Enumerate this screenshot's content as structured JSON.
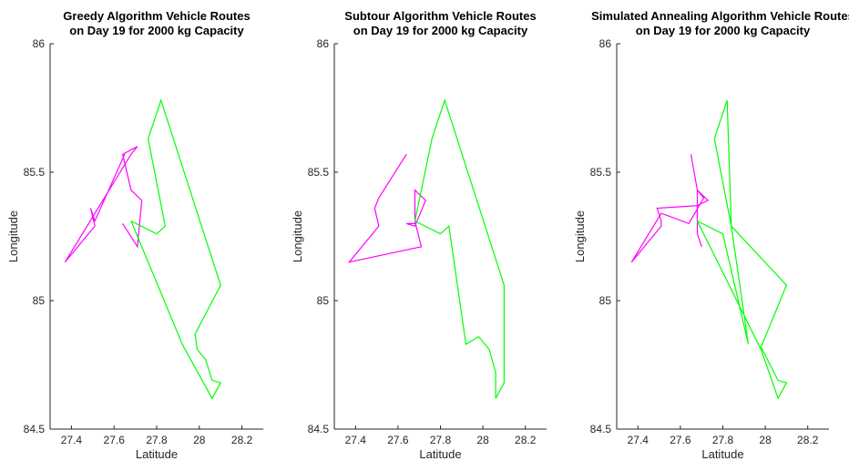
{
  "colors": {
    "route_1": "#ff00ff",
    "route_2": "#00ff00",
    "axis": "#262626"
  },
  "chart_data": [
    {
      "type": "line",
      "title": [
        "Greedy Algorithm Vehicle Routes",
        "on Day 19 for 2000 kg Capacity"
      ],
      "xlabel": "Latitude",
      "ylabel": "Longitude",
      "xlim": [
        27.3,
        28.3
      ],
      "ylim": [
        84.5,
        86
      ],
      "xticks": [
        27.4,
        27.6,
        27.8,
        28,
        28.2
      ],
      "xtick_labels": [
        "27.4",
        "27.6",
        "27.8",
        "28",
        "28.2"
      ],
      "yticks": [
        84.5,
        85,
        85.5,
        86
      ],
      "ytick_labels": [
        "84.5",
        "85",
        "85.5",
        "86"
      ],
      "grid": false,
      "series": [
        {
          "color": "#ff00ff",
          "x": [
            27.64,
            27.71,
            27.73,
            27.68,
            27.64,
            27.71,
            27.68,
            27.37,
            27.51,
            27.51,
            27.49,
            27.51,
            27.65
          ],
          "y": [
            85.3,
            85.21,
            85.39,
            85.43,
            85.57,
            85.6,
            85.57,
            85.15,
            85.29,
            85.29,
            85.36,
            85.31,
            85.57
          ]
        },
        {
          "color": "#00ff00",
          "x": [
            27.68,
            27.8,
            27.84,
            27.76,
            27.82,
            28.1,
            27.98,
            27.99,
            28.03,
            28.06,
            28.1,
            28.06,
            27.92,
            27.68
          ],
          "y": [
            85.31,
            85.26,
            85.29,
            85.63,
            85.78,
            85.06,
            84.87,
            84.81,
            84.77,
            84.69,
            84.68,
            84.62,
            84.83,
            85.31
          ]
        }
      ]
    },
    {
      "type": "line",
      "title": [
        "Subtour Algorithm Vehicle Routes",
        "on Day 19 for 2000 kg Capacity"
      ],
      "xlabel": "Latitude",
      "ylabel": "Longitude",
      "xlim": [
        27.3,
        28.3
      ],
      "ylim": [
        84.5,
        86
      ],
      "xticks": [
        27.4,
        27.6,
        27.8,
        28,
        28.2
      ],
      "xtick_labels": [
        "27.4",
        "27.6",
        "27.8",
        "28",
        "28.2"
      ],
      "yticks": [
        84.5,
        85,
        85.5,
        86
      ],
      "ytick_labels": [
        "84.5",
        "85",
        "85.5",
        "86"
      ],
      "grid": false,
      "series": [
        {
          "color": "#ff00ff",
          "x": [
            27.68,
            27.64,
            27.68,
            27.73,
            27.68,
            27.68,
            27.71,
            27.37,
            27.51,
            27.49,
            27.51,
            27.64
          ],
          "y": [
            85.3,
            85.3,
            85.29,
            85.39,
            85.43,
            85.31,
            85.21,
            85.15,
            85.29,
            85.36,
            85.4,
            85.57
          ]
        },
        {
          "color": "#00ff00",
          "x": [
            27.68,
            27.8,
            27.84,
            27.92,
            27.98,
            28.03,
            28.06,
            28.06,
            28.1,
            28.1,
            27.82,
            27.76,
            27.68
          ],
          "y": [
            85.31,
            85.26,
            85.29,
            84.83,
            84.86,
            84.81,
            84.72,
            84.62,
            84.68,
            85.06,
            85.78,
            85.63,
            85.31
          ]
        }
      ]
    },
    {
      "type": "line",
      "title": [
        "Simulated Annealing Algorithm Vehicle Routes",
        "on Day 19 for 2000 kg Capacity"
      ],
      "xlabel": "Latitude",
      "ylabel": "Longitude",
      "xlim": [
        27.3,
        28.3
      ],
      "ylim": [
        84.5,
        86
      ],
      "xticks": [
        27.4,
        27.6,
        27.8,
        28,
        28.2
      ],
      "xtick_labels": [
        "27.4",
        "27.6",
        "27.8",
        "28",
        "28.2"
      ],
      "yticks": [
        84.5,
        85,
        85.5,
        86
      ],
      "ytick_labels": [
        "84.5",
        "85",
        "85.5",
        "86"
      ],
      "grid": false,
      "series": [
        {
          "color": "#ff00ff",
          "x": [
            27.65,
            27.68,
            27.71,
            27.64,
            27.51,
            27.37,
            27.51,
            27.51,
            27.49,
            27.68,
            27.73,
            27.68,
            27.68,
            27.7
          ],
          "y": [
            85.57,
            85.43,
            85.4,
            85.3,
            85.34,
            85.15,
            85.29,
            85.31,
            85.36,
            85.37,
            85.39,
            85.43,
            85.26,
            85.21
          ]
        },
        {
          "color": "#00ff00",
          "x": [
            27.68,
            27.8,
            27.92,
            27.84,
            27.76,
            27.82,
            27.84,
            28.1,
            27.98,
            28.06,
            28.1,
            28.06,
            27.98,
            27.68
          ],
          "y": [
            85.31,
            85.26,
            84.83,
            85.29,
            85.63,
            85.78,
            85.29,
            85.06,
            84.82,
            84.69,
            84.68,
            84.62,
            84.81,
            85.31
          ]
        }
      ]
    }
  ]
}
